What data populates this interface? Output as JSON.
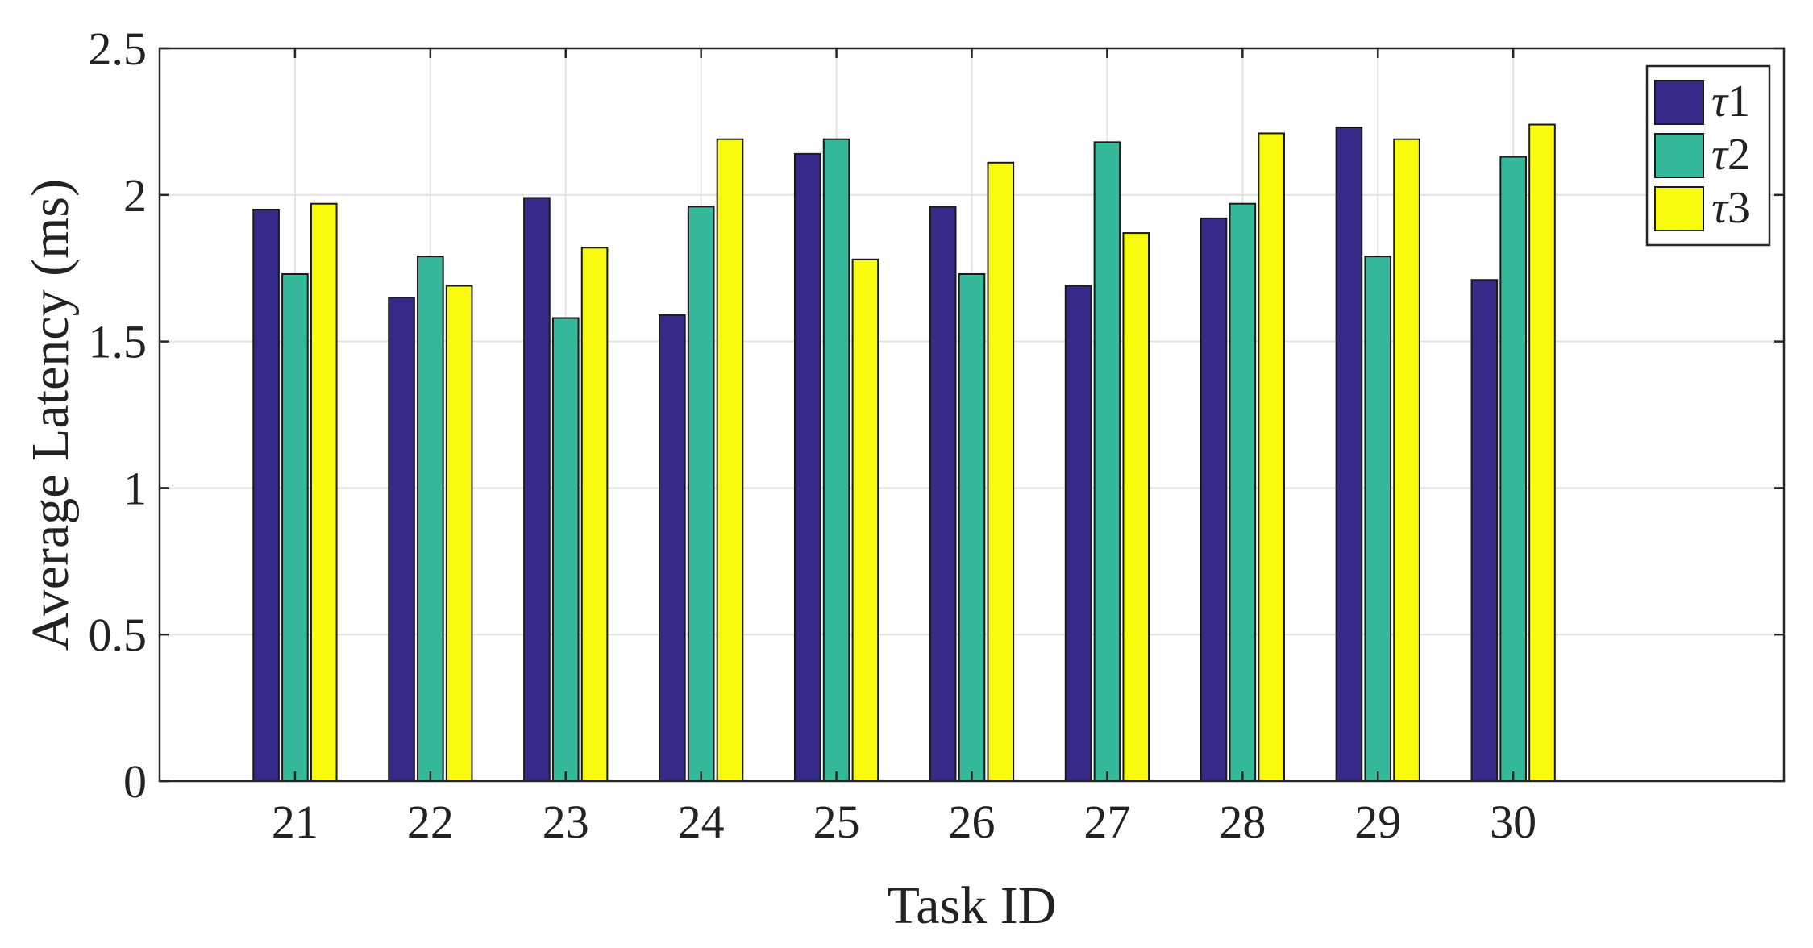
{
  "chart_data": {
    "type": "bar",
    "title": "",
    "xlabel": "Task ID",
    "ylabel": "Average Latency (ms)",
    "categories": [
      "21",
      "22",
      "23",
      "24",
      "25",
      "26",
      "27",
      "28",
      "29",
      "30"
    ],
    "xlim": [
      20,
      32
    ],
    "ylim": [
      0,
      2.5
    ],
    "yticks": [
      "0",
      "0.5",
      "1",
      "1.5",
      "2",
      "2.5"
    ],
    "grid": true,
    "legend_position": "top-right",
    "series": [
      {
        "name": "τ1",
        "symbol": "τ",
        "index": "1",
        "color": "#352a87",
        "values": [
          1.95,
          1.65,
          1.99,
          1.59,
          2.14,
          1.96,
          1.69,
          1.92,
          2.23,
          1.71
        ]
      },
      {
        "name": "τ2",
        "symbol": "τ",
        "index": "2",
        "color": "#36b99a",
        "values": [
          1.73,
          1.79,
          1.58,
          1.96,
          2.19,
          1.73,
          2.18,
          1.97,
          1.79,
          2.13
        ]
      },
      {
        "name": "τ3",
        "symbol": "τ",
        "index": "3",
        "color": "#f9fb0e",
        "values": [
          1.97,
          1.69,
          1.82,
          2.19,
          1.78,
          2.11,
          1.87,
          2.21,
          2.19,
          2.24
        ]
      }
    ]
  }
}
